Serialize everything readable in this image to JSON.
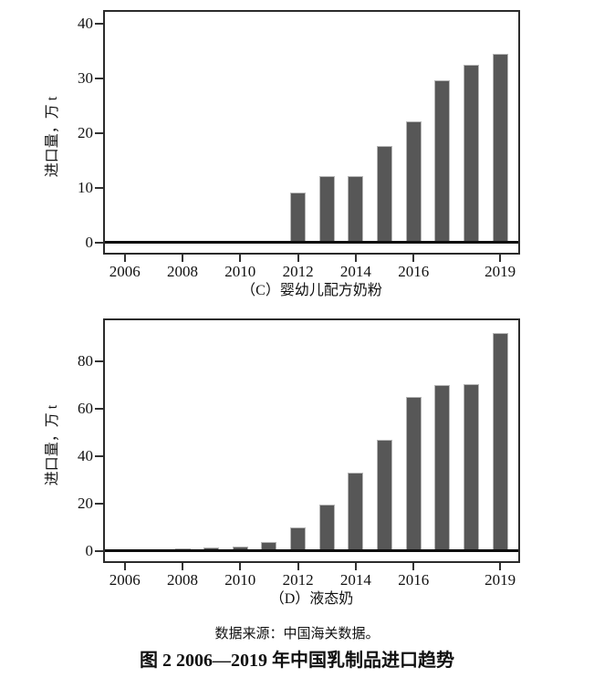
{
  "figure": {
    "source_note": "数据来源：中国海关数据。",
    "title": "图 2  2006—2019 年中国乳制品进口趋势"
  },
  "colors": {
    "bar_fill": "#575757",
    "bar_border": "#b5b5b5",
    "axis_box": "#2b2b2b",
    "zero_line": "#0d0d0d",
    "tick": "#333333"
  },
  "chart_data": [
    {
      "type": "bar",
      "title": "（C）婴幼儿配方奶粉",
      "ylabel": "进口量，万 t",
      "xlabel": "",
      "categories": [
        2006,
        2007,
        2008,
        2009,
        2010,
        2011,
        2012,
        2013,
        2014,
        2015,
        2016,
        2017,
        2018,
        2019
      ],
      "values": [
        0,
        0,
        0,
        0,
        0,
        0,
        9.1,
        12.2,
        12.1,
        17.6,
        22.1,
        29.6,
        32.5,
        34.5
      ],
      "ylim": [
        0,
        42.5
      ],
      "yticks": [
        0,
        10,
        20,
        30,
        40
      ],
      "xticks": [
        2006,
        2008,
        2010,
        2012,
        2014,
        2016,
        2019
      ],
      "grid": false,
      "legend": "none"
    },
    {
      "type": "bar",
      "title": "（D）液态奶",
      "ylabel": "进口量，万 t",
      "xlabel": "",
      "categories": [
        2006,
        2007,
        2008,
        2009,
        2010,
        2011,
        2012,
        2013,
        2014,
        2015,
        2016,
        2017,
        2018,
        2019
      ],
      "values": [
        0.2,
        0.3,
        1,
        1.5,
        2,
        4,
        9.8,
        19.5,
        33,
        47,
        65,
        70,
        70.5,
        92
      ],
      "ylim": [
        0,
        98
      ],
      "yticks": [
        0,
        20,
        40,
        60,
        80
      ],
      "xticks": [
        2006,
        2008,
        2010,
        2012,
        2014,
        2016,
        2019
      ],
      "grid": false,
      "legend": "none"
    }
  ]
}
